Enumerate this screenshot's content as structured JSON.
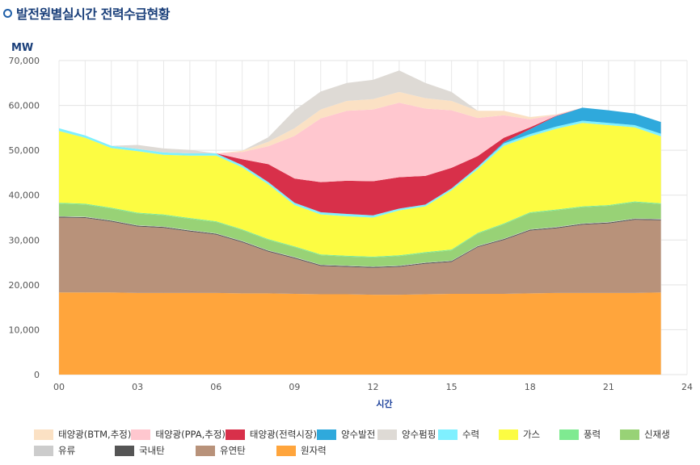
{
  "page_title": "발전원별실시간 전력수급현황",
  "chart_data": {
    "type": "area",
    "stacked": true,
    "ylabel": "MW",
    "xlabel": "시간",
    "xlim": [
      0,
      24
    ],
    "ylim": [
      0,
      70000
    ],
    "x_ticks": [
      "00",
      "03",
      "06",
      "09",
      "12",
      "15",
      "18",
      "21",
      "24"
    ],
    "y_ticks": [
      "0",
      "10,000",
      "20,000",
      "30,000",
      "40,000",
      "50,000",
      "60,000",
      "70,000"
    ],
    "grid": true,
    "legend_position": "bottom",
    "x": [
      0,
      1,
      2,
      3,
      4,
      5,
      6,
      7,
      8,
      9,
      10,
      11,
      12,
      13,
      14,
      15,
      16,
      17,
      18,
      19,
      20,
      21,
      22,
      23
    ],
    "series": [
      {
        "name": "원자력",
        "color": "#ffa53c",
        "values": [
          18300,
          18300,
          18300,
          18200,
          18200,
          18200,
          18200,
          18100,
          18100,
          18000,
          17900,
          17900,
          17800,
          17800,
          17900,
          18000,
          18000,
          18000,
          18100,
          18200,
          18200,
          18200,
          18200,
          18300
        ]
      },
      {
        "name": "유연탄",
        "color": "#b8927a",
        "values": [
          16700,
          16600,
          15800,
          14800,
          14500,
          13700,
          13000,
          11400,
          9300,
          7900,
          6300,
          6100,
          6000,
          6200,
          6800,
          7100,
          10400,
          12000,
          14000,
          14400,
          15200,
          15500,
          16300,
          16100
        ]
      },
      {
        "name": "국내탄",
        "color": "#555555",
        "values": [
          200,
          200,
          200,
          200,
          200,
          200,
          200,
          200,
          200,
          200,
          200,
          200,
          200,
          200,
          200,
          200,
          200,
          200,
          200,
          200,
          200,
          200,
          200,
          200
        ]
      },
      {
        "name": "유류",
        "color": "#cccccc",
        "values": [
          100,
          100,
          100,
          100,
          100,
          100,
          100,
          100,
          100,
          100,
          100,
          100,
          100,
          100,
          100,
          100,
          100,
          100,
          100,
          100,
          100,
          100,
          100,
          100
        ]
      },
      {
        "name": "신재생",
        "color": "#98d276",
        "values": [
          2800,
          2700,
          2600,
          2600,
          2500,
          2500,
          2500,
          2400,
          2300,
          2200,
          2100,
          2000,
          2000,
          2100,
          2100,
          2300,
          2700,
          3200,
          3600,
          3700,
          3600,
          3600,
          3600,
          3300
        ]
      },
      {
        "name": "풍력",
        "color": "#7fea91",
        "values": [
          200,
          200,
          200,
          200,
          200,
          200,
          200,
          200,
          200,
          200,
          200,
          200,
          200,
          200,
          200,
          200,
          200,
          200,
          200,
          200,
          200,
          200,
          200,
          200
        ]
      },
      {
        "name": "가스",
        "color": "#fcfc42",
        "values": [
          16000,
          14700,
          13300,
          13700,
          13300,
          13900,
          14600,
          13800,
          12200,
          9200,
          8900,
          8800,
          8700,
          10000,
          10200,
          13200,
          14200,
          17300,
          16900,
          18000,
          18600,
          17800,
          16500,
          14900
        ]
      },
      {
        "name": "수력",
        "color": "#7ff0ff",
        "values": [
          600,
          500,
          500,
          500,
          500,
          500,
          500,
          500,
          500,
          500,
          500,
          500,
          500,
          400,
          400,
          400,
          500,
          500,
          500,
          500,
          500,
          500,
          500,
          600
        ]
      },
      {
        "name": "양수펌핑",
        "color": "#dedad5",
        "values": [
          0,
          0,
          0,
          0,
          0,
          0,
          0,
          0,
          0,
          0,
          0,
          0,
          0,
          0,
          0,
          0,
          0,
          0,
          0,
          0,
          0,
          0,
          0,
          0
        ]
      },
      {
        "name": "양수발전",
        "color": "#2fa9dc",
        "values": [
          0,
          0,
          0,
          0,
          0,
          0,
          0,
          0,
          0,
          0,
          0,
          0,
          0,
          0,
          0,
          0,
          0,
          300,
          1100,
          2300,
          2900,
          2800,
          2600,
          2600
        ]
      },
      {
        "name": "태양광(전력시장)",
        "color": "#d8304a",
        "values": [
          0,
          0,
          0,
          0,
          0,
          0,
          0,
          1300,
          4000,
          5400,
          6700,
          7400,
          7600,
          7000,
          6400,
          4600,
          2400,
          1000,
          400,
          100,
          0,
          0,
          0,
          0
        ]
      },
      {
        "name": "태양광(PPA,추정)",
        "color": "#ffc7cf",
        "values": [
          0,
          0,
          0,
          0,
          0,
          0,
          0,
          1600,
          4000,
          9500,
          14200,
          15600,
          16000,
          16600,
          15000,
          12800,
          8500,
          5000,
          1800,
          200,
          0,
          0,
          0,
          0
        ]
      },
      {
        "name": "태양광(BTM,추정)",
        "color": "#fbe1c4",
        "values": [
          0,
          0,
          0,
          0,
          0,
          0,
          0,
          300,
          1000,
          1700,
          2000,
          2200,
          2300,
          2400,
          2300,
          2100,
          1600,
          1000,
          500,
          100,
          0,
          0,
          0,
          0
        ]
      }
    ],
    "legend_extra": [
      {
        "name": "양수펌핑",
        "color": "#dedad5",
        "values": [
          0,
          0,
          0,
          900,
          900,
          800,
          0,
          0,
          1000,
          4000,
          4000,
          4000,
          4300,
          4800,
          3400,
          2000,
          0,
          0,
          0,
          0,
          0,
          0,
          0,
          0
        ],
        "note": "drawn above total"
      }
    ],
    "legend": [
      [
        {
          "name": "태양광(BTM,추정)",
          "color": "#fbe1c4"
        },
        {
          "name": "태양광(PPA,추정)",
          "color": "#ffc7cf"
        },
        {
          "name": "태양광(전력시장)",
          "color": "#d8304a"
        },
        {
          "name": "양수발전",
          "color": "#2fa9dc"
        },
        {
          "name": "양수펌핑",
          "color": "#dedad5"
        },
        {
          "name": "수력",
          "color": "#7ff0ff"
        },
        {
          "name": "가스",
          "color": "#fcfc42"
        },
        {
          "name": "풍력",
          "color": "#7fea91"
        },
        {
          "name": "신재생",
          "color": "#98d276"
        }
      ],
      [
        {
          "name": "유류",
          "color": "#cccccc"
        },
        {
          "name": "국내탄",
          "color": "#555555"
        },
        {
          "name": "유연탄",
          "color": "#b8927a"
        },
        {
          "name": "원자력",
          "color": "#ffa53c"
        }
      ]
    ]
  }
}
